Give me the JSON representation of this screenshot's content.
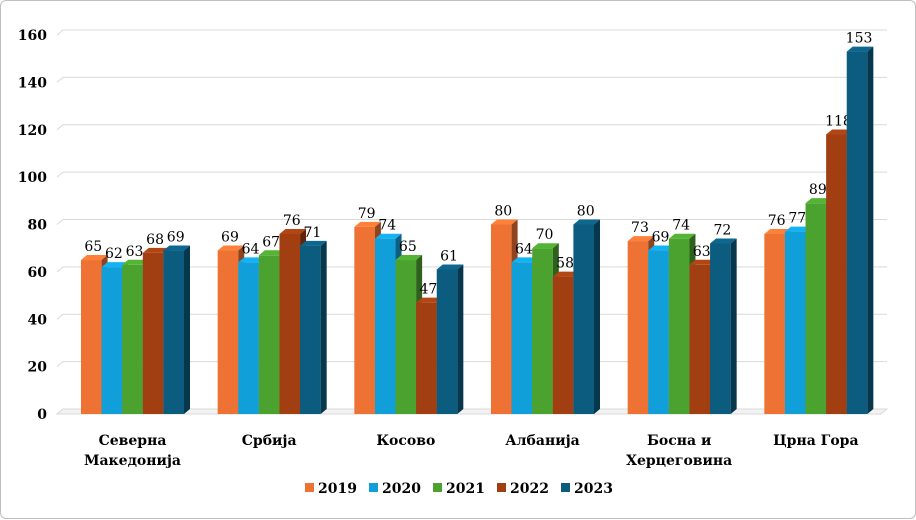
{
  "chart_data": {
    "type": "bar",
    "categories": [
      [
        "Северна",
        "Македонија"
      ],
      [
        "Србија"
      ],
      [
        "Косово"
      ],
      [
        "Албанија"
      ],
      [
        "Босна и",
        "Херцеговина"
      ],
      [
        "Црна Гора"
      ]
    ],
    "series": [
      {
        "name": "2019",
        "color": "#ED7233",
        "values": [
          65,
          69,
          79,
          80,
          73,
          76
        ]
      },
      {
        "name": "2020",
        "color": "#119FD9",
        "values": [
          62,
          64,
          74,
          64,
          69,
          77
        ]
      },
      {
        "name": "2021",
        "color": "#4BA22F",
        "values": [
          63,
          67,
          65,
          70,
          74,
          89
        ]
      },
      {
        "name": "2022",
        "color": "#A13E12",
        "values": [
          68,
          76,
          47,
          58,
          63,
          118
        ]
      },
      {
        "name": "2023",
        "color": "#0C5C80",
        "values": [
          69,
          71,
          61,
          80,
          72,
          153
        ]
      }
    ],
    "ylim": [
      0,
      160
    ],
    "yticks": [
      0,
      20,
      40,
      60,
      80,
      100,
      120,
      140,
      160
    ],
    "grid": true,
    "legend": "bottom",
    "style": "3d-clustered"
  }
}
